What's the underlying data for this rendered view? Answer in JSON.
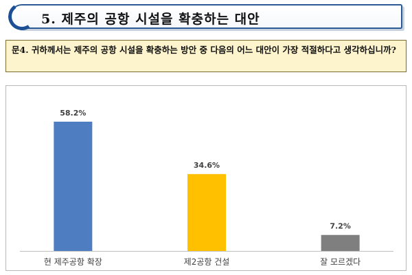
{
  "header": {
    "title": "5. 제주의 공항 시설을 확충하는 대안"
  },
  "question": {
    "text": "문4. 귀하께서는 제주의 공항 시설을 확충하는 방안 중 다음의 어느 대안이 가장 적절하다고 생각하십니까?"
  },
  "chart_data": {
    "type": "bar",
    "categories": [
      "현 제주공항 확장",
      "제2공항 건설",
      "잘 모르겠다"
    ],
    "values": [
      58.2,
      34.6,
      7.2
    ],
    "value_labels": [
      "58.2%",
      "34.6%",
      "7.2%"
    ],
    "colors": [
      "#4e7ec1",
      "#ffc000",
      "#7f7f7f"
    ],
    "unit": "%",
    "ylim": [
      0,
      65
    ],
    "grid": false,
    "legend": "none"
  }
}
